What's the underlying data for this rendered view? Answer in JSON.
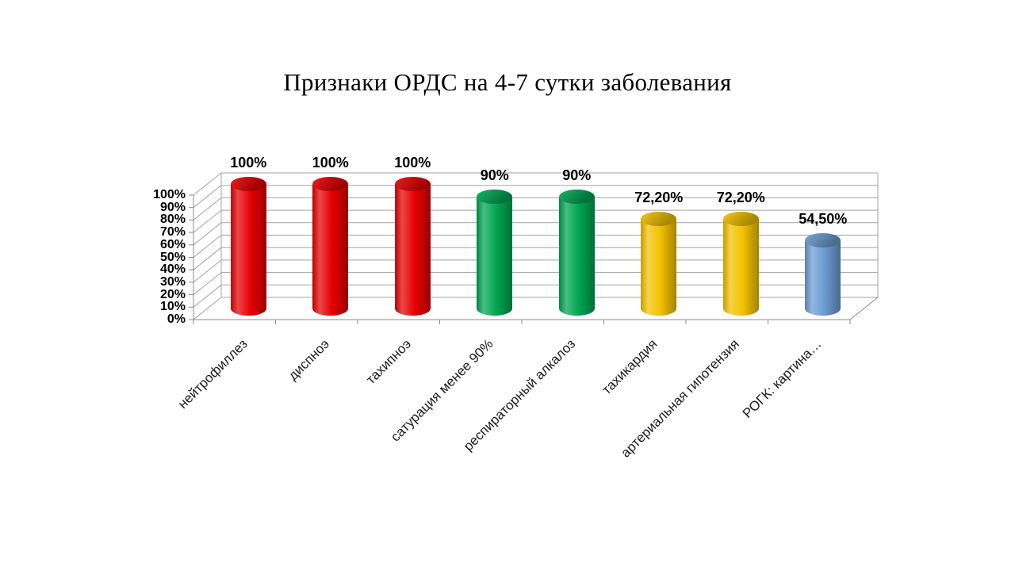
{
  "slide": {
    "background": "#ffffff"
  },
  "chart_data": {
    "type": "bar",
    "subtype": "3d-cylinder",
    "title": "Признаки ОРДС на 4-7 сутки заболевания",
    "categories": [
      "нейтрофиллез",
      "диспноэ",
      "тахипноэ",
      "сатурация менее 90%",
      "респираторный алкалоз",
      "тахикардия",
      "артериальная гипотензия",
      "РОГК: картина…"
    ],
    "values": [
      100,
      100,
      100,
      90,
      90,
      72.2,
      72.2,
      54.5
    ],
    "value_labels": [
      "100%",
      "100%",
      "100%",
      "90%",
      "90%",
      "72,20%",
      "72,20%",
      "54,50%"
    ],
    "bar_colors": [
      "#e60000",
      "#e60000",
      "#e60000",
      "#00a551",
      "#00a551",
      "#f2c100",
      "#f2c100",
      "#6b9bd2"
    ],
    "xlabel": "",
    "ylabel": "",
    "ylim": [
      0,
      100
    ],
    "ytick_step": 10,
    "ytick_labels": [
      "0%",
      "10%",
      "20%",
      "30%",
      "40%",
      "50%",
      "60%",
      "70%",
      "80%",
      "90%",
      "100%"
    ],
    "grid": true,
    "legend": false,
    "gridline_color": "#a3a3a3",
    "axis_color": "#8c8c8c",
    "label_color": "#000000",
    "background": "#ffffff"
  }
}
